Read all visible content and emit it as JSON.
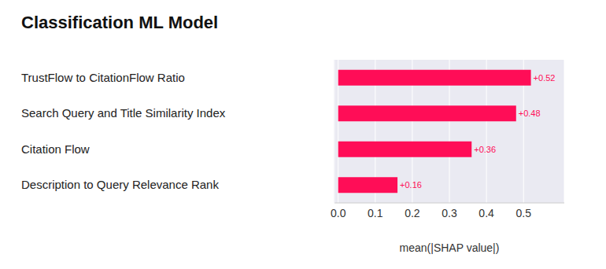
{
  "chart_data": {
    "type": "bar",
    "title": "Classification ML Model",
    "orientation": "horizontal",
    "categories": [
      "TrustFlow to CitationFlow Ratio",
      "Search Query and Title Similarity Index",
      "Citation Flow",
      "Description to Query Relevance Rank"
    ],
    "values": [
      0.52,
      0.48,
      0.36,
      0.16
    ],
    "value_labels": [
      "+0.52",
      "+0.48",
      "+0.36",
      "+0.16"
    ],
    "data_labels": true,
    "color": "#ff0d57",
    "x_label": "mean(|SHAP value|)",
    "xlim": [
      -0.01,
      0.61
    ],
    "xticks": [
      {
        "value": 0,
        "label": "0.0"
      },
      0.1,
      0.2,
      0.3,
      0.4,
      0.5
    ],
    "grid": true
  }
}
